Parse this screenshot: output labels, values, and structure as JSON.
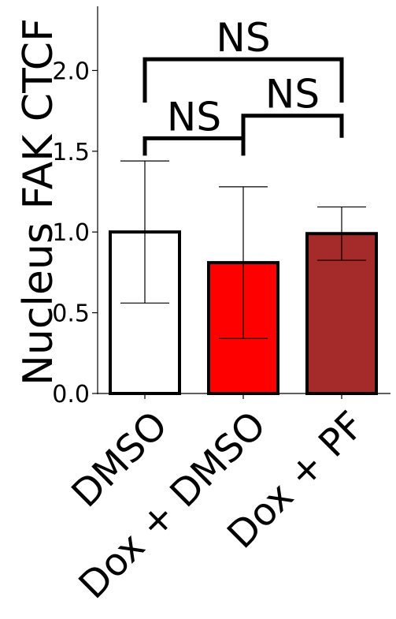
{
  "chart_data": {
    "type": "bar",
    "title": "",
    "xlabel": "",
    "ylabel": "Nucleus FAK CTCF",
    "ylim": [
      0,
      2.4
    ],
    "yticks": [
      0.0,
      0.5,
      1.0,
      1.5,
      2.0
    ],
    "ytick_labels": [
      "0.0",
      "0.5",
      "1.0",
      "1.5",
      "2.0"
    ],
    "categories": [
      "DMSO",
      "Dox + DMSO",
      "Dox + PF"
    ],
    "values": [
      1.0,
      0.81,
      0.99
    ],
    "errors": [
      0.44,
      0.47,
      0.165
    ],
    "colors": [
      "#ffffff",
      "#ff0000",
      "#a52a2a"
    ],
    "edge_color": "#000000",
    "grid": false,
    "legend": "none",
    "significance": [
      {
        "from": 0,
        "to": 1,
        "y": 1.58,
        "label": "NS"
      },
      {
        "from": 1,
        "to": 2,
        "y": 1.72,
        "label": "NS"
      },
      {
        "from": 0,
        "to": 2,
        "y": 2.07,
        "label": "NS"
      }
    ]
  }
}
